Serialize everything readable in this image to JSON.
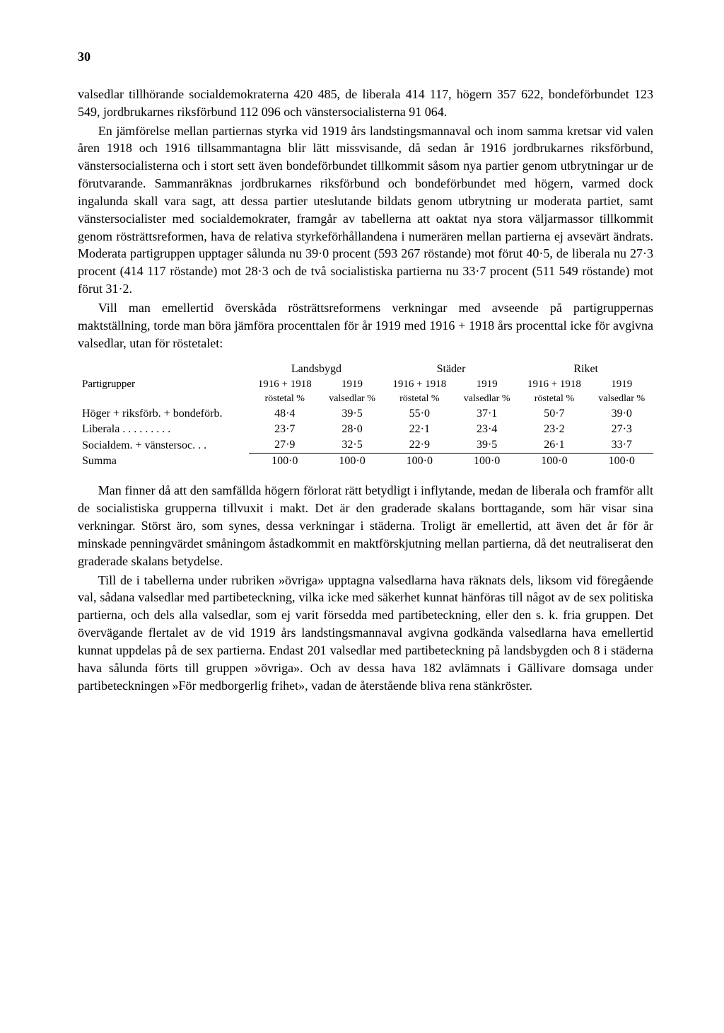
{
  "page_number": "30",
  "para1": "valsedlar tillhörande socialdemokraterna 420 485, de liberala 414 117, högern 357 622, bondeförbundet 123 549, jordbrukarnes riksförbund 112 096 och vänstersocialisterna 91 064.",
  "para2": "En jämförelse mellan partiernas styrka vid 1919 års landstingsmannaval och inom samma kretsar vid valen åren 1918 och 1916 tillsammantagna blir lätt missvisande, då sedan år 1916 jordbrukarnes riksförbund, vänstersocialisterna och i stort sett även bondeförbundet tillkommit såsom nya partier genom utbrytningar ur de förutvarande. Sammanräknas jordbrukarnes riksförbund och bondeförbundet med högern, varmed dock ingalunda skall vara sagt, att dessa partier uteslutande bildats genom utbrytning ur moderata partiet, samt vänstersocialister med socialdemokrater, framgår av tabellerna att oaktat nya stora väljarmassor tillkommit genom rösträttsreformen, hava de relativa styrkeförhållandena i numerären mellan partierna ej avsevärt ändrats. Moderata partigruppen upptager sålunda nu 39·0 procent (593 267 röstande) mot förut 40·5, de liberala nu 27·3 procent (414 117 röstande) mot 28·3 och de två socialistiska partierna nu 33·7 procent (511 549 röstande) mot förut 31·2.",
  "para3": "Vill man emellertid överskåda rösträttsreformens verkningar med avseende på partigruppernas maktställning, torde man böra jämföra procenttalen för år 1919 med 1916 + 1918 års procenttal icke för avgivna valsedlar, utan för röstetalet:",
  "table": {
    "col_partigrupper": "Partigrupper",
    "group_landsbygd": "Landsbygd",
    "group_stader": "Städer",
    "group_riket": "Riket",
    "sub_1916_1918": "1916 + 1918",
    "sub_1919": "1919",
    "unit_rostetal": "röstetal %",
    "unit_valsedlar": "valsedlar %",
    "rows": [
      {
        "label": "Höger + riksförb. + bondeförb.",
        "v": [
          "48·4",
          "39·5",
          "55·0",
          "37·1",
          "50·7",
          "39·0"
        ]
      },
      {
        "label": "Liberala . . . . . . . . .",
        "v": [
          "23·7",
          "28·0",
          "22·1",
          "23·4",
          "23·2",
          "27·3"
        ]
      },
      {
        "label": "Socialdem. + vänstersoc. . .",
        "v": [
          "27·9",
          "32·5",
          "22·9",
          "39·5",
          "26·1",
          "33·7"
        ]
      }
    ],
    "sum_label": "Summa",
    "sum": [
      "100·0",
      "100·0",
      "100·0",
      "100·0",
      "100·0",
      "100·0"
    ]
  },
  "para4": "Man finner då att den samfällda högern förlorat rätt betydligt i inflytande, medan de liberala och framför allt de socialistiska grupperna tillvuxit i makt. Det är den graderade skalans borttagande, som här visar sina verkningar. Störst äro, som synes, dessa verkningar i städerna. Troligt är emellertid, att även det år för år minskade penningvärdet småningom åstadkommit en maktförskjutning mellan partierna, då det neutraliserat den graderade skalans betydelse.",
  "para5": "Till de i tabellerna under rubriken »övriga» upptagna valsedlarna hava räknats dels, liksom vid föregående val, sådana valsedlar med partibeteckning, vilka icke med säkerhet kunnat hänföras till något av de sex politiska partierna, och dels alla valsedlar, som ej varit försedda med partibeteckning, eller den s. k. fria gruppen. Det övervägande flertalet av de vid 1919 års landstingsmannaval avgivna godkända valsedlarna hava emellertid kunnat uppdelas på de sex partierna. Endast 201 valsedlar med partibeteckning på landsbygden och 8 i städerna hava sålunda förts till gruppen »övriga». Och av dessa hava 182 avlämnats i Gällivare domsaga under partibeteckningen »För medborgerlig frihet», vadan de återstående bliva rena stänkröster."
}
